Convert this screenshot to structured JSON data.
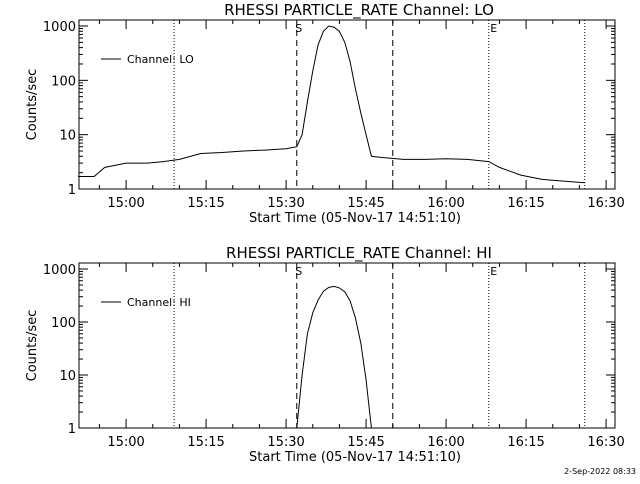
{
  "footer": {
    "timestamp": "2-Sep-2022 08:33"
  },
  "chart_data": [
    {
      "type": "line",
      "title": "RHESSI PARTICLE_RATE Channel: LO",
      "xlabel": "Start Time (05-Nov-17 14:51:10)",
      "ylabel": "Counts/sec",
      "yscale": "log",
      "ylim": [
        1,
        1000
      ],
      "xlim_minutes_after_14_00": [
        51.17,
        151.67
      ],
      "x_tick_labels": [
        "15:00",
        "15:15",
        "15:30",
        "15:45",
        "16:00",
        "16:15",
        "16:30"
      ],
      "y_tick_labels": [
        "1",
        "10",
        "100",
        "1000"
      ],
      "legend": {
        "label": "Channel: LO",
        "position": "top-left"
      },
      "markers": {
        "start_label": "S",
        "end_label": "E"
      },
      "vertical_lines": {
        "dotted": [
          "15:09",
          "16:08",
          "16:26"
        ],
        "dashed": [
          "15:32",
          "15:50"
        ]
      },
      "series": [
        {
          "name": "Channel: LO",
          "points": [
            [
              "14:51",
              1.7
            ],
            [
              "14:54",
              1.7
            ],
            [
              "14:56",
              2.5
            ],
            [
              "15:00",
              3.0
            ],
            [
              "15:04",
              3.0
            ],
            [
              "15:07",
              3.2
            ],
            [
              "15:10",
              3.5
            ],
            [
              "15:14",
              4.5
            ],
            [
              "15:18",
              4.7
            ],
            [
              "15:22",
              5.0
            ],
            [
              "15:26",
              5.2
            ],
            [
              "15:30",
              5.5
            ],
            [
              "15:32",
              6.0
            ],
            [
              "15:33",
              10
            ],
            [
              "15:34",
              40
            ],
            [
              "15:35",
              150
            ],
            [
              "15:36",
              450
            ],
            [
              "15:37",
              800
            ],
            [
              "15:38",
              1000
            ],
            [
              "15:39",
              950
            ],
            [
              "15:40",
              800
            ],
            [
              "15:41",
              500
            ],
            [
              "15:42",
              220
            ],
            [
              "15:43",
              70
            ],
            [
              "15:44",
              25
            ],
            [
              "15:45",
              10
            ],
            [
              "15:46",
              4
            ],
            [
              "15:48",
              3.8
            ],
            [
              "15:52",
              3.5
            ],
            [
              "15:56",
              3.5
            ],
            [
              "16:00",
              3.6
            ],
            [
              "16:04",
              3.5
            ],
            [
              "16:08",
              3.2
            ],
            [
              "16:10",
              2.5
            ],
            [
              "16:14",
              1.8
            ],
            [
              "16:18",
              1.5
            ],
            [
              "16:22",
              1.4
            ],
            [
              "16:26",
              1.3
            ]
          ]
        }
      ]
    },
    {
      "type": "line",
      "title": "RHESSI PARTICLE_RATE Channel: HI",
      "xlabel": "Start Time (05-Nov-17 14:51:10)",
      "ylabel": "Counts/sec",
      "yscale": "log",
      "ylim": [
        1,
        1000
      ],
      "xlim_minutes_after_14_00": [
        51.17,
        151.67
      ],
      "x_tick_labels": [
        "15:00",
        "15:15",
        "15:30",
        "15:45",
        "16:00",
        "16:15",
        "16:30"
      ],
      "y_tick_labels": [
        "1",
        "10",
        "100",
        "1000"
      ],
      "legend": {
        "label": "Channel: HI",
        "position": "top-left"
      },
      "markers": {
        "start_label": "S",
        "end_label": "E"
      },
      "vertical_lines": {
        "dotted": [
          "15:09",
          "16:08",
          "16:26"
        ],
        "dashed": [
          "15:32",
          "15:50"
        ]
      },
      "series": [
        {
          "name": "Channel: HI",
          "points": [
            [
              "15:32",
              1.0
            ],
            [
              "15:33",
              10
            ],
            [
              "15:34",
              60
            ],
            [
              "15:35",
              150
            ],
            [
              "15:36",
              260
            ],
            [
              "15:37",
              380
            ],
            [
              "15:38",
              450
            ],
            [
              "15:39",
              470
            ],
            [
              "15:40",
              440
            ],
            [
              "15:41",
              370
            ],
            [
              "15:42",
              250
            ],
            [
              "15:43",
              120
            ],
            [
              "15:44",
              40
            ],
            [
              "15:45",
              8
            ],
            [
              "15:46",
              1.0
            ]
          ]
        }
      ]
    }
  ]
}
